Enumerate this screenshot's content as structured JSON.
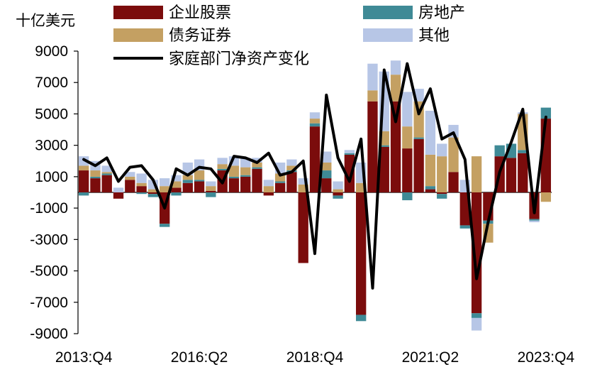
{
  "chart_data": {
    "type": "bar",
    "unit_label": "十亿美元",
    "ylim": [
      -9000,
      9000
    ],
    "yticks": [
      "9000",
      "7000",
      "5000",
      "3000",
      "1000",
      "-1000",
      "-3000",
      "-5000",
      "-7000",
      "-9000"
    ],
    "ytick_values": [
      9000,
      7000,
      5000,
      3000,
      1000,
      -1000,
      -3000,
      -5000,
      -7000,
      -9000
    ],
    "xtick_labels": [
      "2013:Q4",
      "2016:Q2",
      "2018:Q4",
      "2021:Q2",
      "2023:Q4"
    ],
    "xtick_indices": [
      0,
      10,
      20,
      30,
      40
    ],
    "legend_position": "top",
    "categories": [
      "2013:Q4",
      "2014:Q1",
      "2014:Q2",
      "2014:Q3",
      "2014:Q4",
      "2015:Q1",
      "2015:Q2",
      "2015:Q3",
      "2015:Q4",
      "2016:Q1",
      "2016:Q2",
      "2016:Q3",
      "2016:Q4",
      "2017:Q1",
      "2017:Q2",
      "2017:Q3",
      "2017:Q4",
      "2018:Q1",
      "2018:Q2",
      "2018:Q3",
      "2018:Q4",
      "2019:Q1",
      "2019:Q2",
      "2019:Q3",
      "2019:Q4",
      "2020:Q1",
      "2020:Q2",
      "2020:Q3",
      "2020:Q4",
      "2021:Q1",
      "2021:Q2",
      "2021:Q3",
      "2021:Q4",
      "2022:Q1",
      "2022:Q2",
      "2022:Q3",
      "2022:Q4",
      "2023:Q1",
      "2023:Q2",
      "2023:Q3",
      "2023:Q4"
    ],
    "series": [
      {
        "name": "企业股票",
        "color": "#7b0c0c",
        "values": [
          1400,
          900,
          1100,
          -400,
          800,
          400,
          -100,
          -2000,
          300,
          600,
          700,
          100,
          1400,
          900,
          1000,
          1500,
          -200,
          600,
          1300,
          -4500,
          4200,
          900,
          -200,
          2400,
          -7800,
          5800,
          2900,
          5800,
          2800,
          3400,
          200,
          -100,
          1300,
          -2100,
          -7700,
          -1800,
          2300,
          2200,
          2500,
          -1700,
          4700
        ]
      },
      {
        "name": "房地产",
        "color": "#3f8a96",
        "values": [
          -200,
          100,
          100,
          0,
          0,
          -100,
          -200,
          -200,
          -200,
          200,
          100,
          -300,
          100,
          100,
          100,
          100,
          0,
          100,
          100,
          0,
          200,
          500,
          -200,
          100,
          -400,
          0,
          100,
          0,
          -500,
          100,
          200,
          -300,
          0,
          -200,
          -300,
          -200,
          700,
          900,
          200,
          -100,
          700
        ]
      },
      {
        "name": "债务证券",
        "color": "#c4a062",
        "values": [
          300,
          400,
          100,
          0,
          200,
          200,
          200,
          400,
          400,
          300,
          600,
          300,
          300,
          700,
          500,
          300,
          400,
          500,
          300,
          500,
          300,
          500,
          200,
          0,
          600,
          700,
          900,
          1700,
          1400,
          2300,
          2000,
          2300,
          2200,
          0,
          2300,
          -1200,
          0,
          0,
          2300,
          0,
          -600
        ]
      },
      {
        "name": "其他",
        "color": "#b7c6e6",
        "values": [
          600,
          600,
          400,
          300,
          300,
          600,
          600,
          500,
          400,
          800,
          700,
          300,
          400,
          600,
          600,
          300,
          400,
          700,
          400,
          400,
          400,
          700,
          500,
          200,
          1300,
          1700,
          3800,
          900,
          2200,
          800,
          2800,
          800,
          800,
          800,
          -800,
          0,
          0,
          0,
          100,
          -100,
          0
        ]
      }
    ],
    "line": {
      "name": "家庭部门净资产变化",
      "color": "#000000",
      "values": [
        2100,
        1700,
        2200,
        700,
        1600,
        1700,
        800,
        -1000,
        1500,
        1100,
        1600,
        1500,
        600,
        2300,
        2200,
        1900,
        2500,
        1100,
        1300,
        2000,
        -3900,
        6200,
        2200,
        700,
        3400,
        -6100,
        7800,
        4500,
        8200,
        5000,
        6600,
        3400,
        3800,
        2100,
        -5500,
        -1900,
        1300,
        3200,
        5300,
        -1300,
        4800
      ]
    }
  }
}
